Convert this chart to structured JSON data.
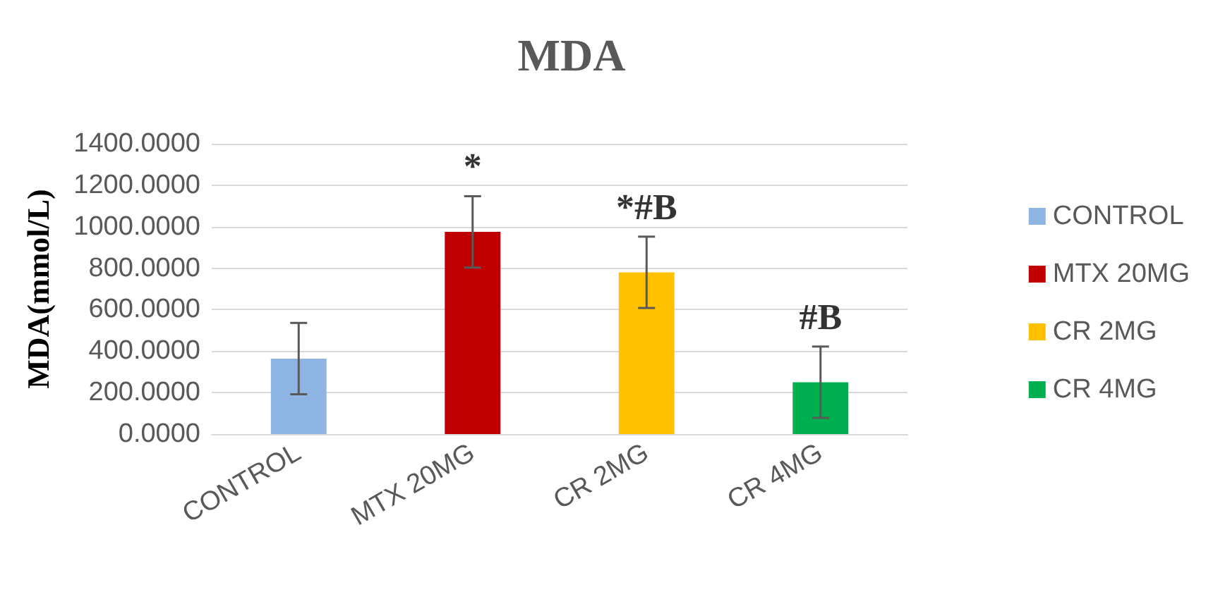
{
  "chart_data": {
    "type": "bar",
    "title": "MDA",
    "ylabel": "MDA(mmol/L)",
    "categories": [
      "CONTROL",
      "MTX 20MG",
      "CR 2MG",
      "CR 4MG"
    ],
    "stacked": true,
    "series": [
      {
        "name": "CONTROL",
        "color": "#8eb4e3",
        "values": [
          364,
          null,
          null,
          null
        ],
        "errors": [
          172,
          null,
          null,
          null
        ]
      },
      {
        "name": "MTX 20MG",
        "color": "#c00000",
        "values": [
          null,
          975,
          null,
          null
        ],
        "errors": [
          null,
          172,
          null,
          null
        ]
      },
      {
        "name": "CR 2MG",
        "color": "#ffc000",
        "values": [
          null,
          null,
          780,
          null
        ],
        "errors": [
          null,
          null,
          172,
          null
        ]
      },
      {
        "name": "CR 4MG",
        "color": "#00b050",
        "values": [
          null,
          null,
          null,
          250
        ],
        "errors": [
          null,
          null,
          null,
          172
        ]
      }
    ],
    "ylim": [
      0,
      1400
    ],
    "yticks": [
      {
        "value": 0,
        "label": "0.0000"
      },
      {
        "value": 200,
        "label": "200.0000"
      },
      {
        "value": 400,
        "label": "400.0000"
      },
      {
        "value": 600,
        "label": "600.0000"
      },
      {
        "value": 800,
        "label": "800.0000"
      },
      {
        "value": 1000,
        "label": "1000.0000"
      },
      {
        "value": 1200,
        "label": "1200.0000"
      },
      {
        "value": 1400,
        "label": "1400.0000"
      }
    ],
    "annotations": [
      {
        "text": "*",
        "x": "MTX 20MG",
        "y": 1147
      },
      {
        "text": "*#B",
        "x": "CR 2MG",
        "y": 952
      },
      {
        "text": "#B",
        "x": "CR 4MG",
        "y": 422
      }
    ],
    "grid": "y",
    "legend": "right"
  }
}
